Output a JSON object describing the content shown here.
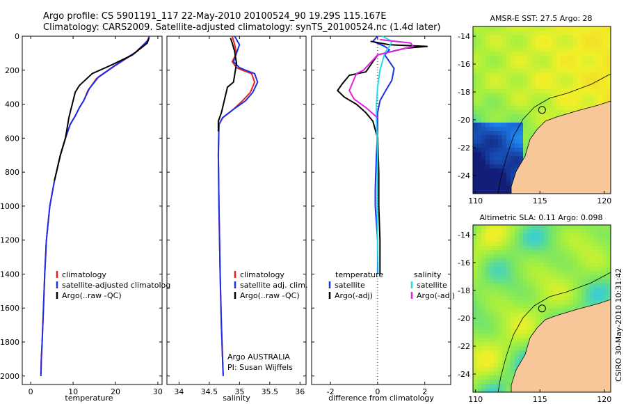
{
  "header": {
    "line1": "Argo profile: CS 5901191_117 22-May-2010 20100524_90 19.29S 115.167E",
    "line2": "Climatology: CARS2009. Satellite-adjusted climatology: synTS_20100524.nc (1.4d later)"
  },
  "timestamp": "CSIRO 30-May-2010 10:31:42",
  "colors": {
    "climatology": "#e8201c",
    "satellite": "#1a2ee8",
    "argo": "#000000",
    "satellite_salinity": "#22dcea",
    "argo_salinity_diff": "#e020e0",
    "land": "#f7c79a"
  },
  "chart_data": [
    {
      "id": "temperature-panel",
      "type": "line",
      "xlabel": "temperature",
      "ylabel": "",
      "xlim": [
        -2,
        31
      ],
      "ylim": [
        2050,
        0
      ],
      "xticks": [
        0,
        10,
        20,
        30
      ],
      "yticks": [
        0,
        200,
        400,
        600,
        800,
        1000,
        1200,
        1400,
        1600,
        1800,
        2000
      ],
      "legend": [
        "climatology",
        "satellite-adjusted climatolog",
        "Argo(..raw -QC)"
      ],
      "series": [
        {
          "name": "climatology",
          "color": "climatology",
          "x": [
            28.0,
            27.5,
            24.5,
            19.5,
            15.5,
            13.5,
            12.5,
            11.5,
            10.5,
            9.3,
            8.2,
            7.0,
            5.6,
            4.5,
            3.7,
            3.3,
            3.0,
            2.7,
            2.5,
            2.4
          ],
          "y": [
            0,
            30,
            100,
            180,
            250,
            320,
            380,
            420,
            470,
            520,
            600,
            700,
            850,
            1000,
            1200,
            1400,
            1600,
            1800,
            1900,
            2000
          ]
        },
        {
          "name": "satellite-adjusted climatolog",
          "color": "satellite",
          "x": [
            28.0,
            27.8,
            25.0,
            20.0,
            16.0,
            13.8,
            12.5,
            11.5,
            10.5,
            9.3,
            8.2,
            7.0,
            5.6,
            4.5,
            3.7,
            3.3,
            3.0,
            2.7,
            2.5,
            2.4
          ],
          "y": [
            0,
            20,
            90,
            170,
            240,
            310,
            380,
            420,
            470,
            520,
            600,
            700,
            850,
            1000,
            1200,
            1400,
            1600,
            1800,
            1900,
            2000
          ]
        },
        {
          "name": "Argo(..raw -QC)",
          "color": "argo",
          "x": [
            27.9,
            27.5,
            24.0,
            19.0,
            14.5,
            11.5,
            10.5,
            10.0,
            9.5,
            9.0,
            8.2,
            7.0,
            5.6
          ],
          "y": [
            10,
            40,
            110,
            170,
            220,
            290,
            330,
            380,
            430,
            480,
            600,
            700,
            850
          ]
        }
      ]
    },
    {
      "id": "salinity-panel",
      "type": "line",
      "xlabel": "salinity",
      "ylabel": "",
      "xlim": [
        33.8,
        36.1
      ],
      "ylim": [
        2050,
        0
      ],
      "xticks": [
        34,
        34.5,
        35,
        35.5,
        36
      ],
      "legend": [
        "climatology",
        "satellite adj. clim.",
        "Argo(..raw -QC)"
      ],
      "annotation": [
        "Argo AUSTRALIA",
        "PI: Susan Wijffels"
      ],
      "series": [
        {
          "name": "climatology",
          "color": "climatology",
          "x": [
            34.88,
            34.92,
            34.95,
            34.88,
            34.95,
            35.05,
            35.2,
            35.25,
            35.18,
            35.05,
            34.9,
            34.72,
            34.66,
            34.65,
            34.66,
            34.68,
            34.7,
            34.72,
            34.73
          ],
          "y": [
            0,
            50,
            100,
            150,
            185,
            200,
            220,
            270,
            330,
            380,
            430,
            480,
            520,
            700,
            1000,
            1400,
            1700,
            1900,
            2000
          ]
        },
        {
          "name": "satellite adj. clim.",
          "color": "satellite",
          "x": [
            34.92,
            35.0,
            34.95,
            34.9,
            35.0,
            35.1,
            35.25,
            35.3,
            35.22,
            35.1,
            34.9,
            34.72,
            34.66,
            34.65,
            34.66,
            34.68,
            34.7,
            34.72,
            34.73
          ],
          "y": [
            0,
            50,
            100,
            150,
            185,
            200,
            220,
            270,
            330,
            380,
            430,
            480,
            520,
            700,
            1000,
            1400,
            1700,
            1900,
            2000
          ]
        },
        {
          "name": "Argo(..raw -QC)",
          "color": "argo",
          "x": [
            34.85,
            34.88,
            34.92,
            34.95,
            34.9,
            34.8,
            34.7,
            34.65,
            34.65
          ],
          "y": [
            10,
            40,
            90,
            160,
            270,
            300,
            450,
            500,
            560
          ]
        }
      ]
    },
    {
      "id": "difference-panel",
      "type": "line",
      "xlabel": "difference from climatology",
      "ylabel": "",
      "xlim": [
        -2.8,
        3.1
      ],
      "ylim": [
        2050,
        0
      ],
      "xticks": [
        -2,
        0,
        2
      ],
      "legend_temperature": [
        "temperature",
        "satellite",
        "Argo(-adj)"
      ],
      "legend_salinity": [
        "salinity",
        "satellite",
        "Argo(-adj)"
      ],
      "series": [
        {
          "name": "satellite",
          "group": "temperature",
          "color": "satellite",
          "x": [
            0,
            -0.2,
            0.3,
            0.5,
            0.3,
            0.5,
            0.7,
            0.6,
            0.3,
            0.1,
            0.0,
            0.0,
            -0.05,
            -0.1,
            -0.1,
            -0.05,
            0.0,
            0.0
          ],
          "y": [
            0,
            30,
            60,
            80,
            110,
            150,
            190,
            260,
            330,
            380,
            450,
            550,
            700,
            900,
            1000,
            1100,
            1200,
            1400
          ]
        },
        {
          "name": "Argo(-adj)",
          "group": "temperature",
          "color": "argo",
          "x": [
            -0.3,
            0.5,
            2.1,
            1.2,
            0.0,
            -0.5,
            -1.2,
            -1.5,
            -1.7,
            -1.4,
            -0.9,
            -0.5,
            -0.2,
            0.0,
            0.05,
            0.05,
            0.1,
            0.1
          ],
          "y": [
            30,
            50,
            60,
            70,
            110,
            210,
            230,
            280,
            320,
            360,
            400,
            450,
            500,
            600,
            800,
            1000,
            1200,
            1400
          ]
        },
        {
          "name": "satellite",
          "group": "salinity",
          "color": "satellite_salinity",
          "x": [
            0.2,
            0.6,
            0.5,
            0.3,
            0.1,
            0.0,
            -0.05,
            -0.05,
            0.0,
            -0.02,
            0.0,
            0.02
          ],
          "y": [
            0,
            30,
            60,
            100,
            200,
            300,
            400,
            500,
            700,
            1000,
            1200,
            1400
          ]
        },
        {
          "name": "Argo(-adj)",
          "group": "salinity",
          "color": "argo_salinity_diff",
          "x": [
            0.1,
            1.4,
            1.5,
            0.0,
            -0.6,
            -0.9,
            -1.2,
            -1.0,
            -0.5,
            0.0
          ],
          "y": [
            20,
            40,
            60,
            110,
            200,
            220,
            320,
            370,
            420,
            480
          ]
        }
      ]
    },
    {
      "id": "sst-map",
      "type": "heatmap",
      "title": "AMSR-E SST: 27.5 Argo: 28",
      "xlim": [
        109.8,
        120.5
      ],
      "ylim": [
        -25.3,
        -13.3
      ],
      "xticks": [
        110,
        115,
        120
      ],
      "yticks": [
        -14,
        -16,
        -18,
        -20,
        -22,
        -24
      ],
      "profile_marker": [
        115.167,
        -19.29
      ]
    },
    {
      "id": "sla-map",
      "type": "heatmap",
      "title": "Altimetric SLA: 0.11 Argo: 0.098",
      "xlim": [
        109.8,
        120.5
      ],
      "ylim": [
        -25.3,
        -13.3
      ],
      "xticks": [
        110,
        115,
        120
      ],
      "yticks": [
        -14,
        -16,
        -18,
        -20,
        -22,
        -24
      ],
      "profile_marker": [
        115.167,
        -19.29
      ]
    }
  ]
}
